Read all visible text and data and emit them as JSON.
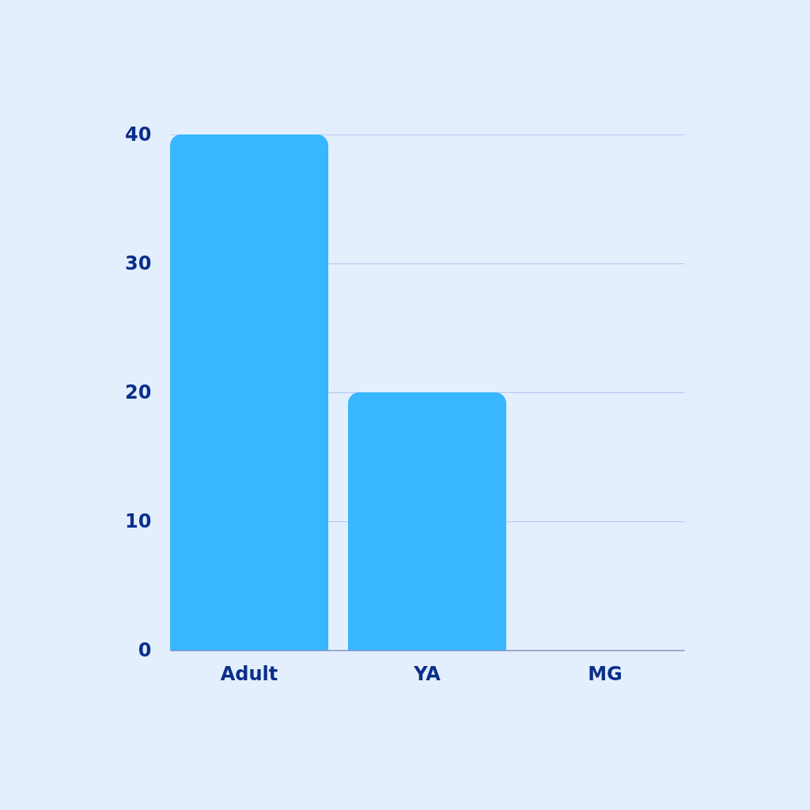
{
  "chart_data": {
    "type": "bar",
    "categories": [
      "Adult",
      "YA",
      "MG"
    ],
    "values": [
      40,
      20,
      0
    ],
    "color": "#38b6ff",
    "ylim": [
      0,
      40
    ],
    "yticks": [
      0,
      10,
      20,
      30,
      40
    ],
    "grid": "y"
  }
}
